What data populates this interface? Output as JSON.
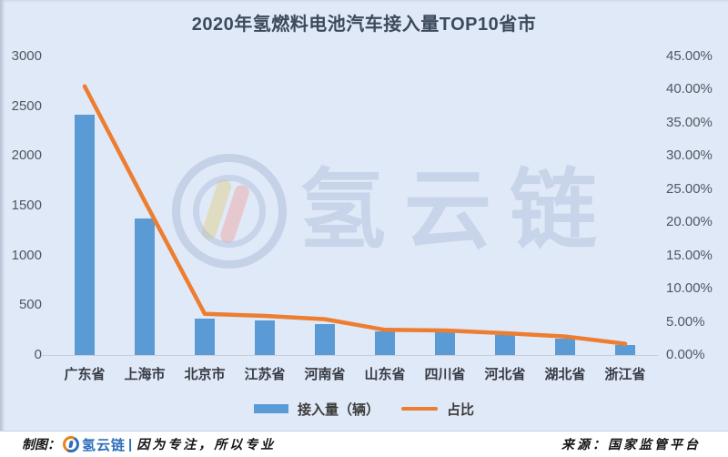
{
  "title": "2020年氢燃料电池汽车接入量TOP10省市",
  "watermark": {
    "text": "氢云链"
  },
  "chart_data": {
    "type": "bar+line",
    "title": "2020年氢燃料电池汽车接入量TOP10省市",
    "categories": [
      "广东省",
      "上海市",
      "北京市",
      "江苏省",
      "河南省",
      "山东省",
      "四川省",
      "河北省",
      "湖北省",
      "浙江省"
    ],
    "series": [
      {
        "name": "接入量（辆）",
        "type": "bar",
        "axis": "left",
        "values": [
          2413,
          1369,
          368,
          351,
          307,
          235,
          226,
          202,
          166,
          101
        ]
      },
      {
        "name": "占比",
        "type": "line",
        "axis": "right",
        "unit": "%",
        "values": [
          40.5,
          23.2,
          6.2,
          5.9,
          5.4,
          3.8,
          3.7,
          3.3,
          2.8,
          1.7
        ]
      }
    ],
    "left_axis": {
      "min": 0,
      "max": 3000,
      "ticks": [
        "0",
        "500",
        "1000",
        "1500",
        "2000",
        "2500",
        "3000"
      ]
    },
    "right_axis": {
      "min": 0,
      "max": 45,
      "ticks": [
        "0.00%",
        "5.00%",
        "10.00%",
        "15.00%",
        "20.00%",
        "25.00%",
        "30.00%",
        "35.00%",
        "40.00%",
        "45.00%"
      ]
    },
    "legend_position": "bottom",
    "grid": false,
    "colors": {
      "bar": "#5b9bd5",
      "line": "#ed7d31",
      "background": "#e0e9f7"
    }
  },
  "footer": {
    "credit_label": "制图：",
    "brand": "氢云链",
    "separator": "|",
    "slogan": "因为专注，所以专业",
    "source": "来源：国家监管平台"
  }
}
